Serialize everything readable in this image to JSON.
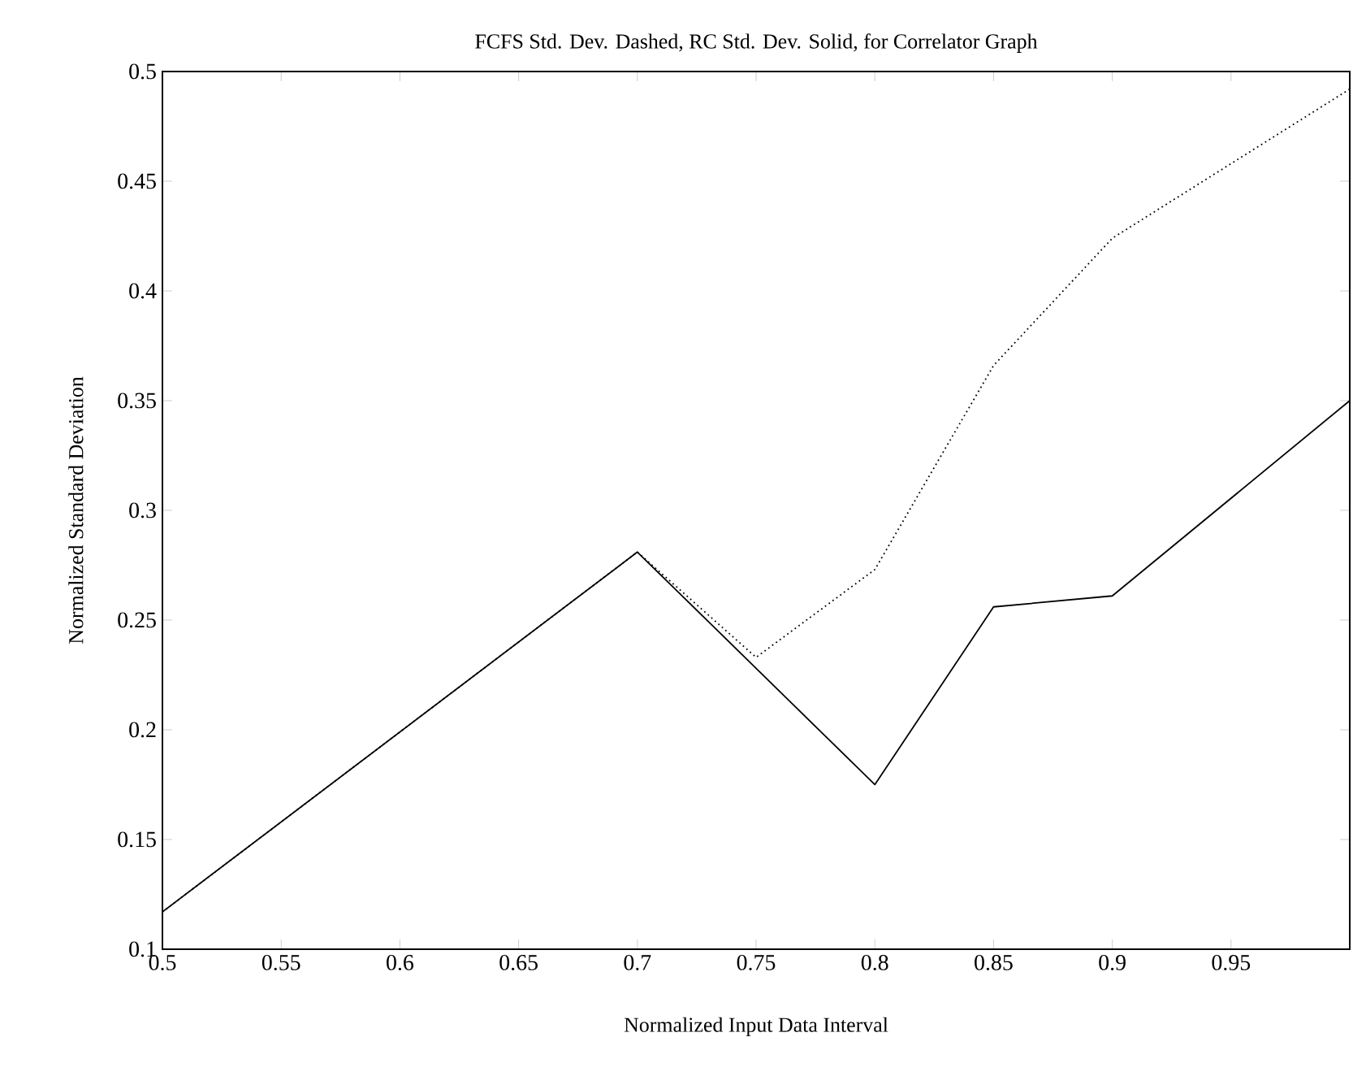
{
  "chart_data": {
    "type": "line",
    "title": "FCFS Std. Dev. Dashed, RC Std. Dev. Solid, for Correlator Graph",
    "xlabel": "Normalized Input Data Interval",
    "ylabel": "Normalized Standard Deviation",
    "x": [
      0.5,
      0.7,
      0.75,
      0.8,
      0.85,
      0.9,
      1.0
    ],
    "series": [
      {
        "color": "#000000",
        "line_style": "dotted",
        "values": [
          0.117,
          0.281,
          0.233,
          0.273,
          0.366,
          0.424,
          0.492
        ]
      },
      {
        "color": "#000000",
        "line_style": "solid",
        "values": [
          0.117,
          0.281,
          0.228,
          0.175,
          0.256,
          0.261,
          0.35
        ]
      }
    ],
    "xlim": [
      0.5,
      1.0
    ],
    "ylim": [
      0.1,
      0.5
    ],
    "xticks": [
      0.5,
      0.55,
      0.6,
      0.65,
      0.7,
      0.75,
      0.8,
      0.85,
      0.9,
      0.95
    ],
    "yticks": [
      0.1,
      0.15,
      0.2,
      0.25,
      0.3,
      0.35,
      0.4,
      0.45,
      0.5
    ],
    "grid": false,
    "marker": "none"
  }
}
